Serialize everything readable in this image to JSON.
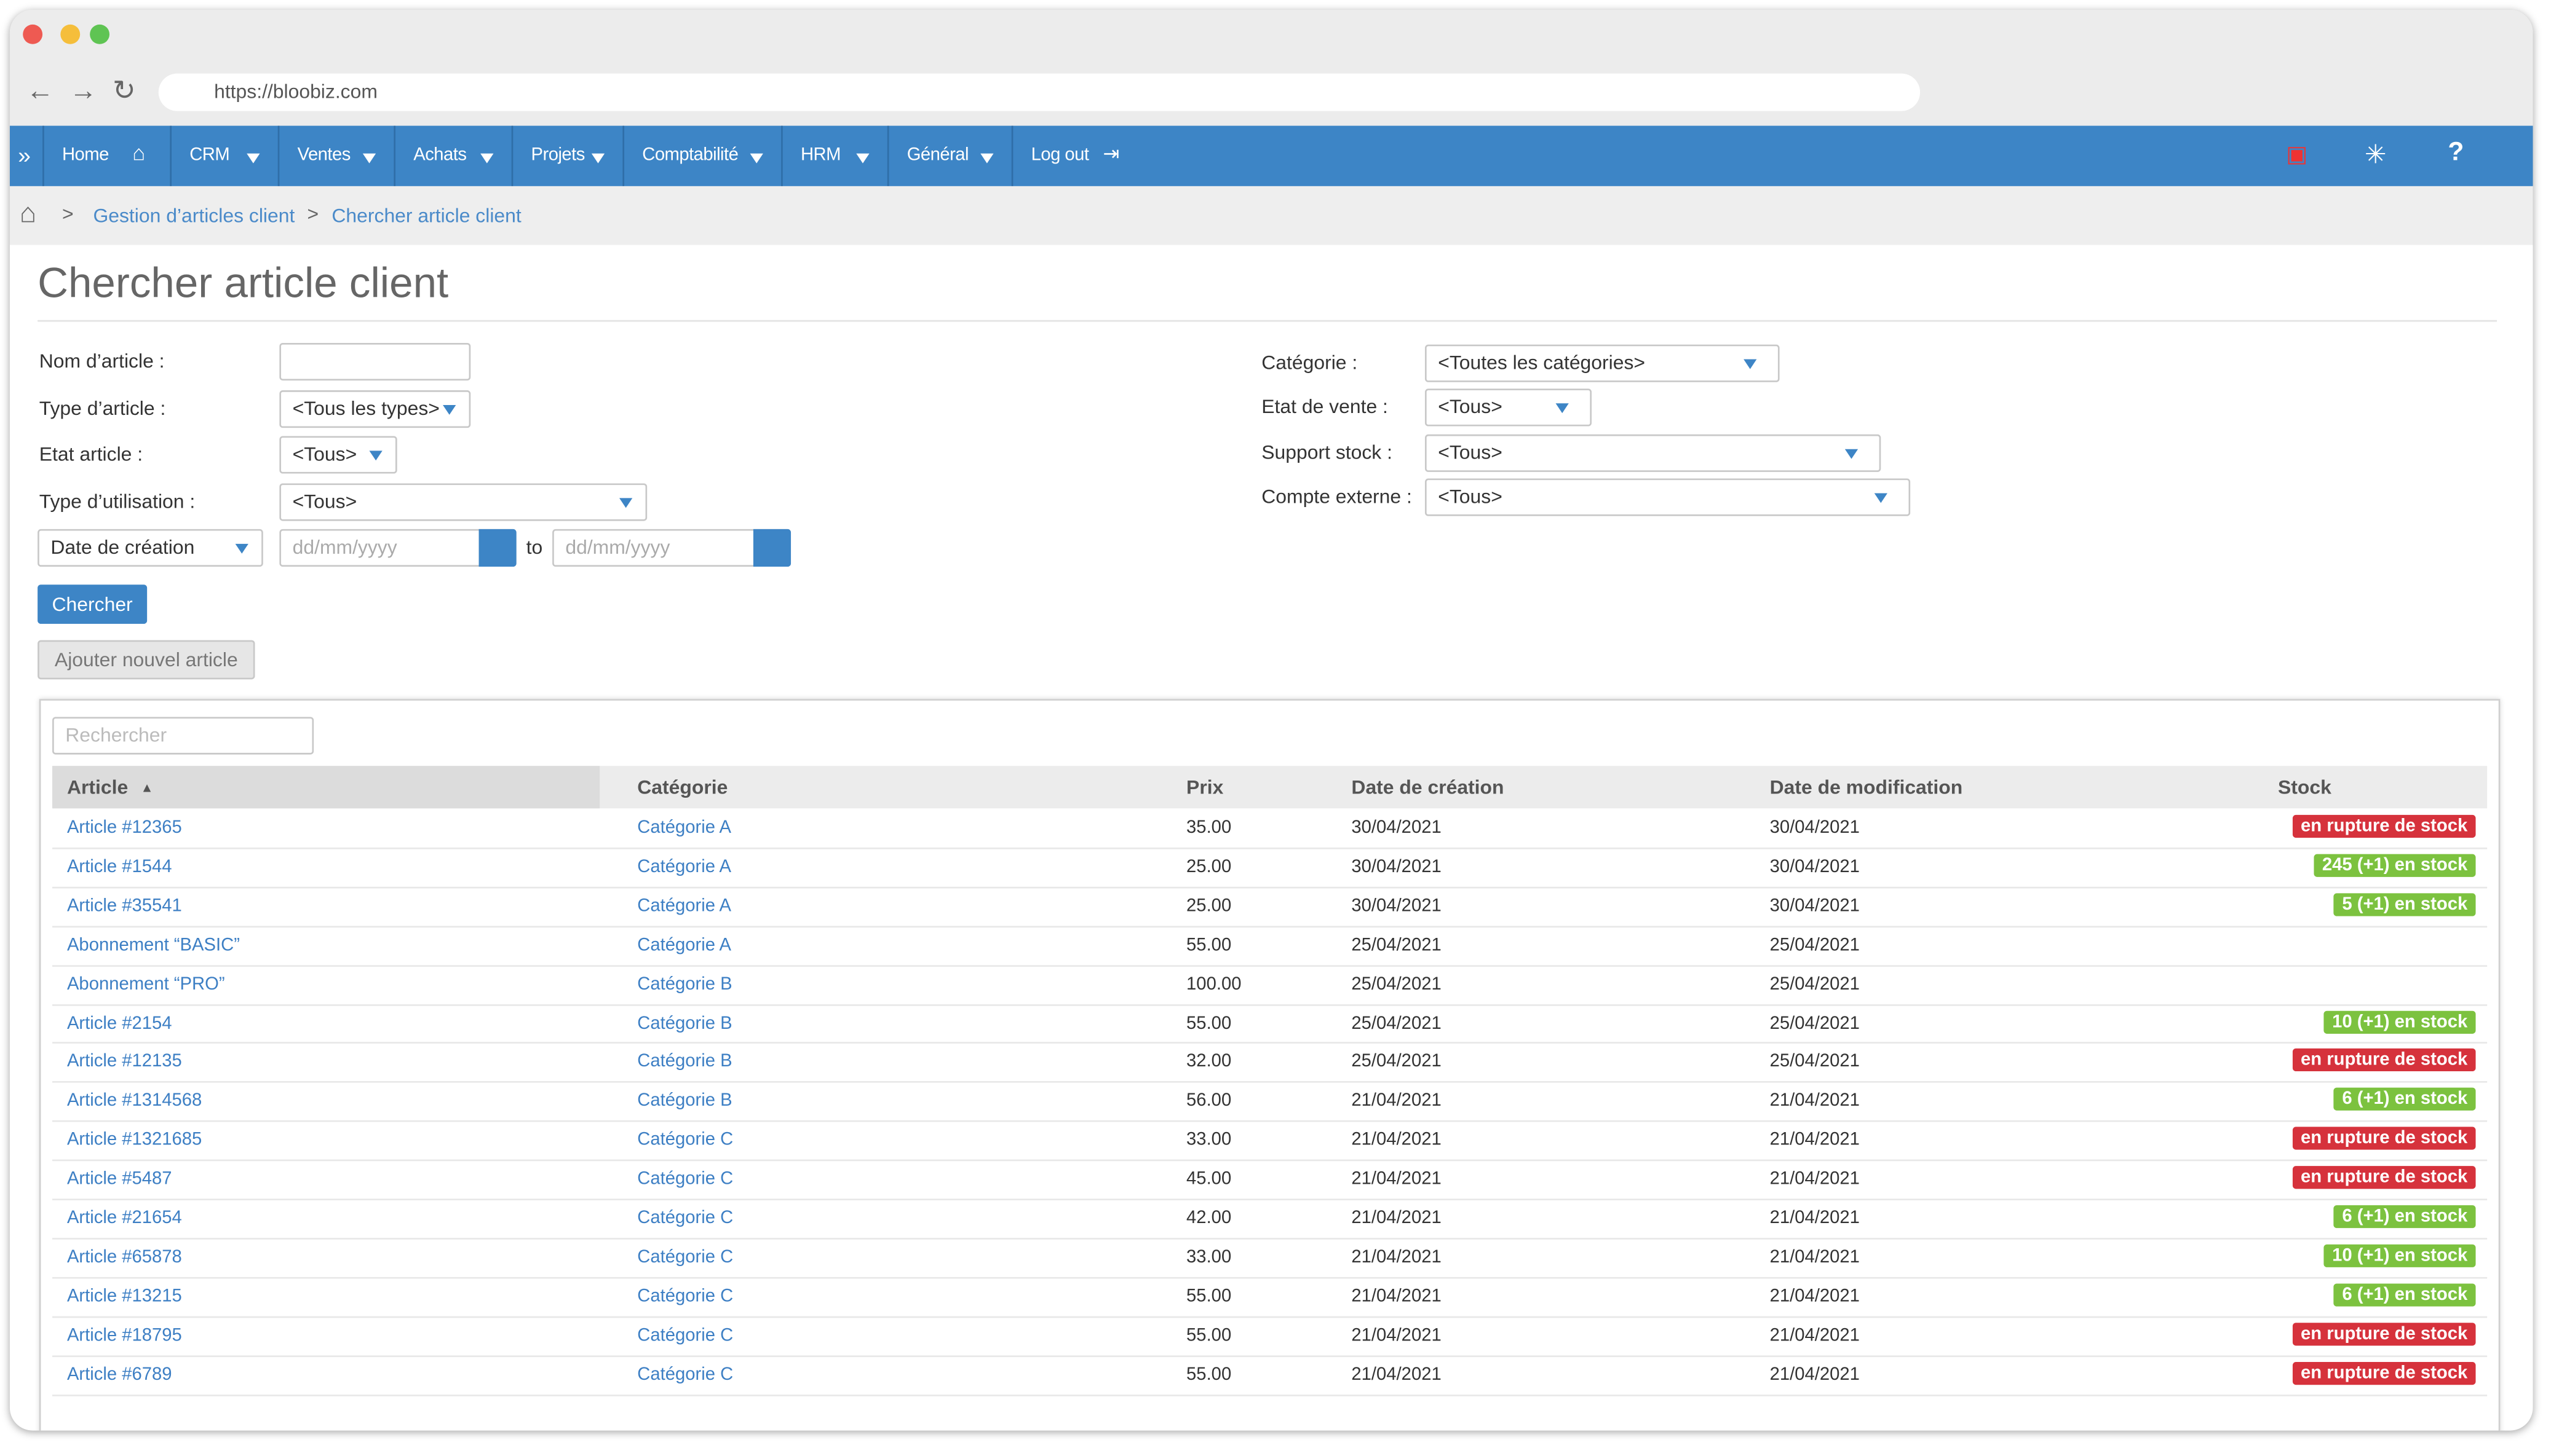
{
  "browser": {
    "url": "https://bloobiz.com"
  },
  "nav": {
    "items": [
      "Home",
      "CRM",
      "Ventes",
      "Achats",
      "Projets",
      "Comptabilité",
      "HRM",
      "Général",
      "Log out"
    ]
  },
  "breadcrumb": [
    "Gestion d’articles client",
    "Chercher article client"
  ],
  "page": {
    "title": "Chercher article client"
  },
  "form": {
    "left": [
      {
        "label": "Nom d’article :"
      },
      {
        "label": "Type d’article :",
        "value": "<Tous les types>"
      },
      {
        "label": "Etat article :",
        "value": "<Tous>"
      },
      {
        "label": "Type d’utilisation :",
        "value": "<Tous>"
      }
    ],
    "date_field": "Date de création",
    "date_placeholder": "dd/mm/yyyy",
    "date_to": "to",
    "right": [
      {
        "label": "Catégorie :",
        "value": "<Toutes les catégories>"
      },
      {
        "label": "Etat de vente :",
        "value": "<Tous>"
      },
      {
        "label": "Support stock :",
        "value": "<Tous>"
      },
      {
        "label": "Compte externe :",
        "value": "<Tous>"
      }
    ]
  },
  "buttons": {
    "search": "Chercher",
    "add": "Ajouter nouvel article"
  },
  "table": {
    "search_placeholder": "Rechercher",
    "columns": [
      "Article",
      "Catégorie",
      "Prix",
      "Date de création",
      "Date de modification",
      "Stock"
    ],
    "rows": [
      [
        "Article #12365",
        "Catégorie A",
        "35.00",
        "30/04/2021",
        "30/04/2021",
        {
          "label": "en rupture de stock",
          "color": "#d6323c"
        }
      ],
      [
        "Article #1544",
        "Catégorie A",
        "25.00",
        "30/04/2021",
        "30/04/2021",
        {
          "label": "245 (+1) en stock",
          "color": "#7cc23f"
        }
      ],
      [
        "Article #35541",
        "Catégorie A",
        "25.00",
        "30/04/2021",
        "30/04/2021",
        {
          "label": "5 (+1) en stock",
          "color": "#7cc23f"
        }
      ],
      [
        "Abonnement “BASIC”",
        "Catégorie A",
        "55.00",
        "25/04/2021",
        "25/04/2021",
        null
      ],
      [
        "Abonnement “PRO”",
        "Catégorie B",
        "100.00",
        "25/04/2021",
        "25/04/2021",
        null
      ],
      [
        "Article #2154",
        "Catégorie B",
        "55.00",
        "25/04/2021",
        "25/04/2021",
        {
          "label": "10 (+1) en stock",
          "color": "#7cc23f"
        }
      ],
      [
        "Article #12135",
        "Catégorie B",
        "32.00",
        "25/04/2021",
        "25/04/2021",
        {
          "label": "en rupture de stock",
          "color": "#d6323c"
        }
      ],
      [
        "Article #1314568",
        "Catégorie B",
        "56.00",
        "21/04/2021",
        "21/04/2021",
        {
          "label": "6 (+1) en stock",
          "color": "#7cc23f"
        }
      ],
      [
        "Article #1321685",
        "Catégorie C",
        "33.00",
        "21/04/2021",
        "21/04/2021",
        {
          "label": "en rupture de stock",
          "color": "#d6323c"
        }
      ],
      [
        "Article #5487",
        "Catégorie C",
        "45.00",
        "21/04/2021",
        "21/04/2021",
        {
          "label": "en rupture de stock",
          "color": "#d6323c"
        }
      ],
      [
        "Article #21654",
        "Catégorie C",
        "42.00",
        "21/04/2021",
        "21/04/2021",
        {
          "label": "6 (+1) en stock",
          "color": "#7cc23f"
        }
      ],
      [
        "Article #65878",
        "Catégorie C",
        "33.00",
        "21/04/2021",
        "21/04/2021",
        {
          "label": "10 (+1) en stock",
          "color": "#7cc23f"
        }
      ],
      [
        "Article #13215",
        "Catégorie C",
        "55.00",
        "21/04/2021",
        "21/04/2021",
        {
          "label": "6 (+1) en stock",
          "color": "#7cc23f"
        }
      ],
      [
        "Article #18795",
        "Catégorie C",
        "55.00",
        "21/04/2021",
        "21/04/2021",
        {
          "label": "en rupture de stock",
          "color": "#d6323c"
        }
      ],
      [
        "Article #6789",
        "Catégorie C",
        "55.00",
        "21/04/2021",
        "21/04/2021",
        {
          "label": "en rupture de stock",
          "color": "#d6323c"
        }
      ]
    ]
  }
}
